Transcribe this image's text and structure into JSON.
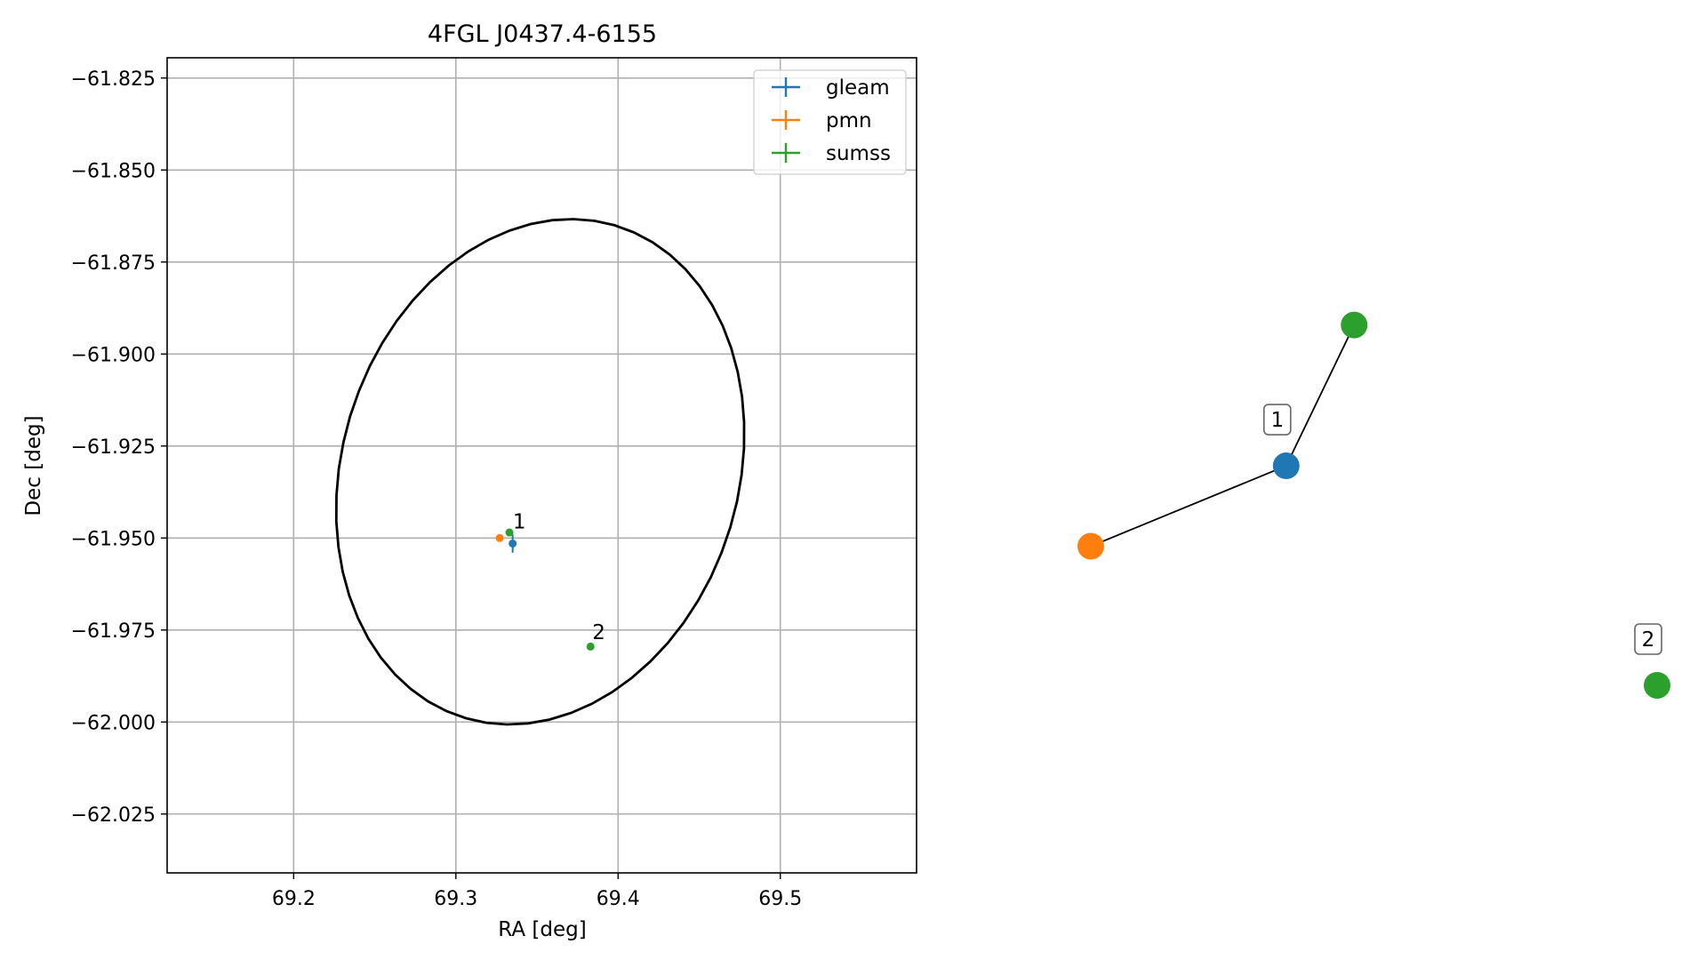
{
  "chart_data": [
    {
      "type": "scatter",
      "title": "4FGL J0437.4-6155",
      "xlabel": "RA [deg]",
      "ylabel": "Dec [deg]",
      "xlim": [
        69.122,
        69.584
      ],
      "ylim": [
        -62.041,
        -61.8195
      ],
      "xticks": [
        69.2,
        69.3,
        69.4,
        69.5
      ],
      "xtick_labels": [
        "69.2",
        "69.3",
        "69.4",
        "69.5"
      ],
      "yticks": [
        -61.825,
        -61.85,
        -61.875,
        -61.9,
        -61.925,
        -61.95,
        -61.975,
        -62.0,
        -62.025
      ],
      "ytick_labels": [
        "−61.825",
        "−61.850",
        "−61.875",
        "−61.900",
        "−61.925",
        "−61.950",
        "−61.975",
        "−62.000",
        "−62.025"
      ],
      "grid": true,
      "legend_position": "top-right",
      "series": [
        {
          "name": "gleam",
          "color": "#1f77b4",
          "points": [
            {
              "x": 69.335,
              "y": -61.9515,
              "xerr": 0.0015,
              "yerr": 0.0025
            }
          ]
        },
        {
          "name": "pmn",
          "color": "#ff7f0e",
          "points": [
            {
              "x": 69.327,
              "y": -61.95,
              "xerr": 0.001,
              "yerr": 0.001
            }
          ]
        },
        {
          "name": "sumss",
          "color": "#2ca02c",
          "points": [
            {
              "x": 69.333,
              "y": -61.9485,
              "xerr": 0.001,
              "yerr": 0.001
            },
            {
              "x": 69.383,
              "y": -61.9795,
              "xerr": 0.001,
              "yerr": 0.001
            }
          ]
        }
      ],
      "ellipse": {
        "center_ra": 69.352,
        "center_dec": -61.932,
        "semi_major_deg": 0.0705,
        "semi_minor_deg": 0.057,
        "angle_deg": 22.7,
        "color": "#000000"
      },
      "annotations": [
        {
          "text": "1",
          "x": 69.334,
          "y": -61.9455
        },
        {
          "text": "2",
          "x": 69.383,
          "y": -61.9755
        }
      ]
    },
    {
      "type": "network",
      "nodes": [
        {
          "id": "sumss-a",
          "label": "",
          "color": "#2ca02c",
          "x": 0.465,
          "y": 0.829
        },
        {
          "id": "gleam",
          "label": "1",
          "color": "#1f77b4",
          "x": 0.345,
          "y": 0.505
        },
        {
          "id": "pmn",
          "label": "",
          "color": "#ff7f0e",
          "x": 0.0,
          "y": 0.32
        },
        {
          "id": "sumss-b",
          "label": "2",
          "color": "#2ca02c",
          "x": 1.0,
          "y": 0.0
        }
      ],
      "edges": [
        {
          "source": "gleam",
          "target": "sumss-a"
        },
        {
          "source": "gleam",
          "target": "pmn"
        }
      ]
    }
  ]
}
